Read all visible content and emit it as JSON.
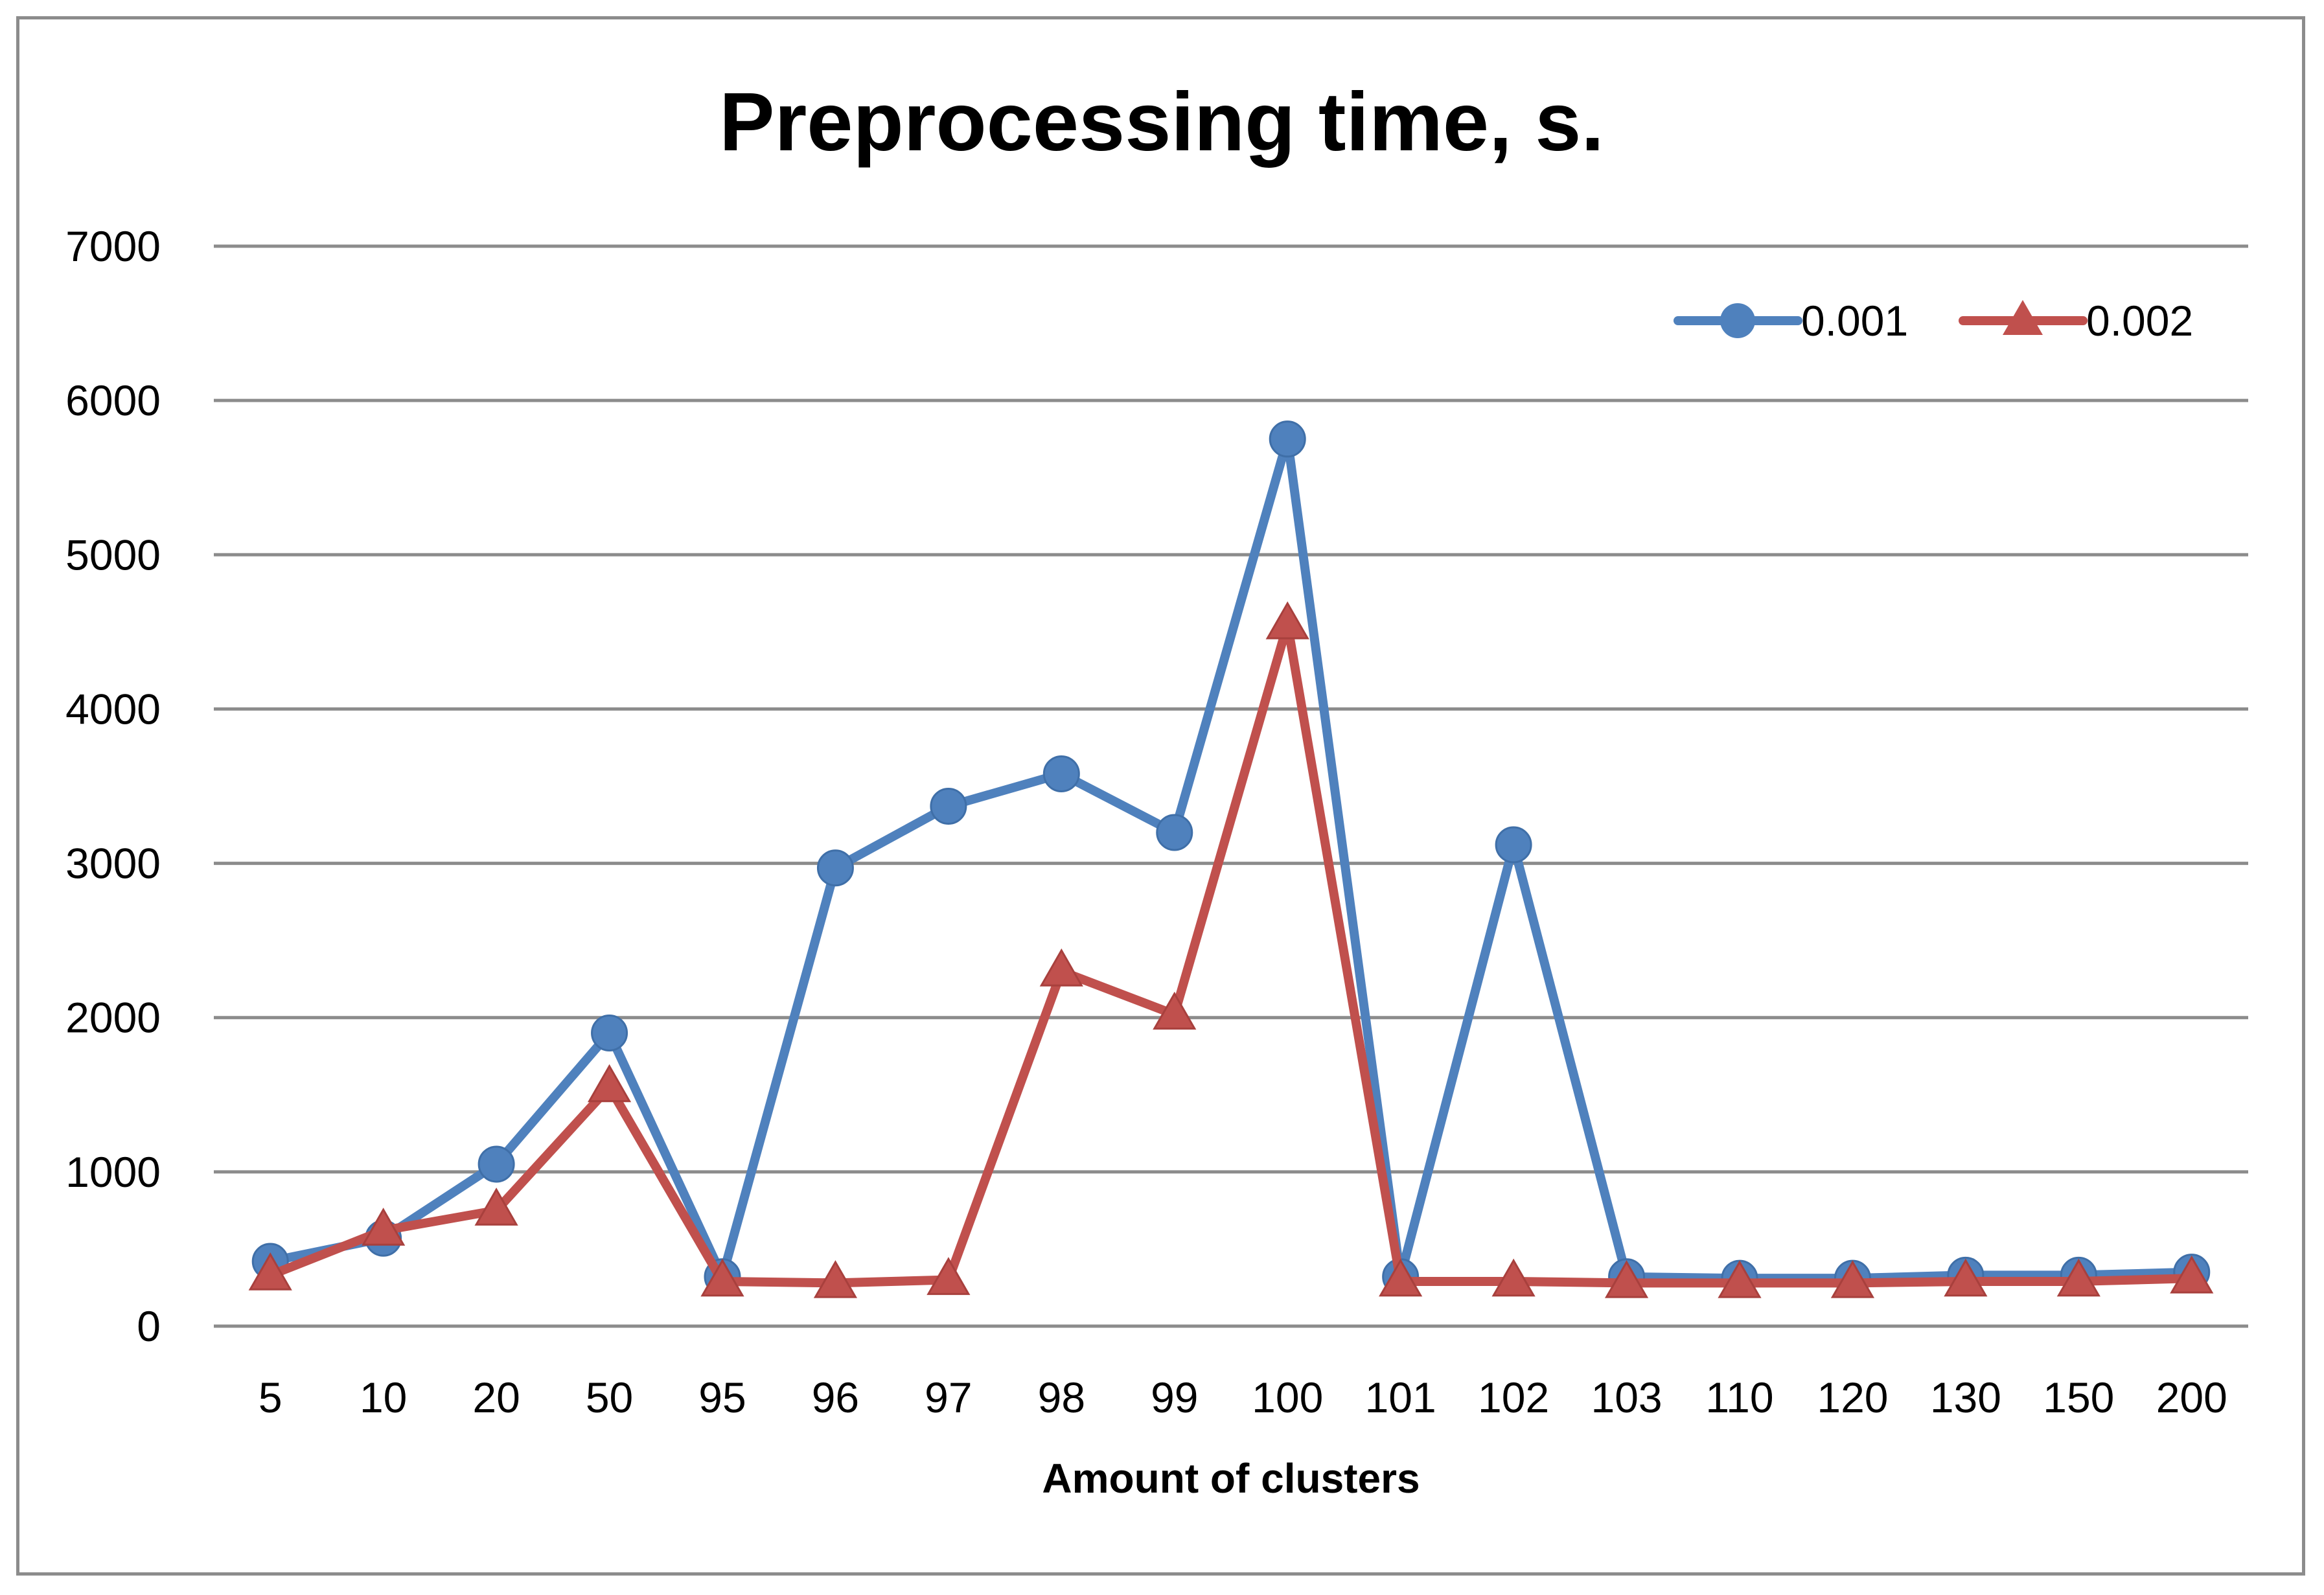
{
  "chart_data": {
    "type": "line",
    "title": "Preprocessing time, s.",
    "xlabel": "Amount of clusters",
    "ylabel": "",
    "ylim": [
      0,
      7000
    ],
    "yticks": [
      0,
      1000,
      2000,
      3000,
      4000,
      5000,
      6000,
      7000
    ],
    "ytick_labels": [
      "0",
      "1000",
      "2000",
      "3000",
      "4000",
      "5000",
      "6000",
      "7000"
    ],
    "grid": true,
    "legend_position": "top-right",
    "categories": [
      "5",
      "10",
      "20",
      "50",
      "95",
      "96",
      "97",
      "98",
      "99",
      "100",
      "101",
      "102",
      "103",
      "110",
      "120",
      "130",
      "150",
      "200"
    ],
    "series": [
      {
        "name": "0.001",
        "color": "#4f81bd",
        "marker": "circle",
        "values": [
          420,
          570,
          1050,
          1900,
          320,
          2970,
          3370,
          3580,
          3200,
          5750,
          320,
          3120,
          320,
          310,
          310,
          330,
          330,
          350
        ]
      },
      {
        "name": "0.002",
        "color": "#c0504d",
        "marker": "triangle",
        "values": [
          330,
          620,
          750,
          1550,
          290,
          280,
          300,
          2300,
          2020,
          4550,
          290,
          290,
          280,
          280,
          280,
          290,
          290,
          310
        ]
      }
    ]
  }
}
